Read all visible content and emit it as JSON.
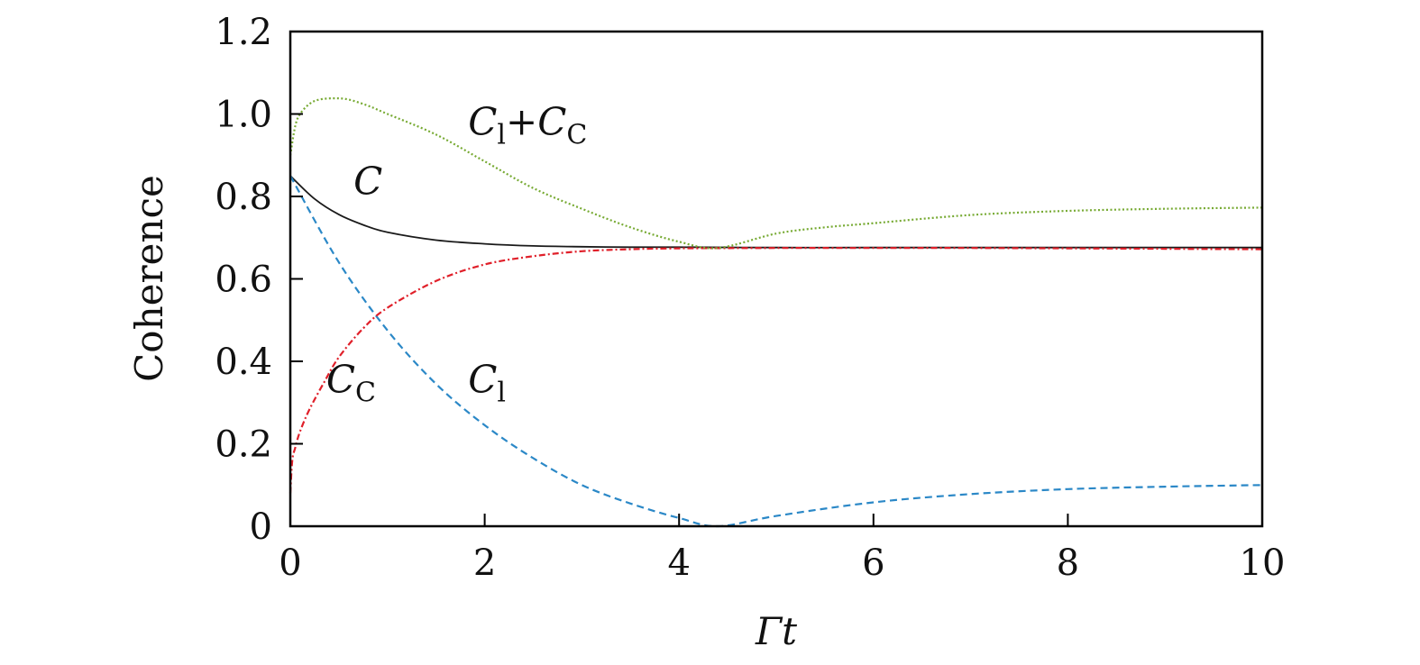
{
  "chart_data": {
    "type": "line",
    "xlabel_main": "Γt",
    "ylabel": "Coherence",
    "xlim": [
      0,
      10
    ],
    "ylim": [
      0,
      1.2
    ],
    "xticks": [
      0,
      2,
      4,
      6,
      8,
      10
    ],
    "xtick_labels": [
      "0",
      "2",
      "4",
      "6",
      "8",
      "10"
    ],
    "yticks": [
      0,
      0.2,
      0.4,
      0.6,
      0.8,
      1.0,
      1.2
    ],
    "ytick_labels": [
      "0",
      "0.2",
      "0.4",
      "0.6",
      "0.8",
      "1.0",
      "1.2"
    ],
    "grid": false,
    "series": [
      {
        "key": "C",
        "color": "#1a1a1a",
        "style": "solid",
        "x": [
          0,
          0.25,
          0.5,
          0.75,
          1,
          1.5,
          2,
          2.5,
          3,
          3.5,
          4,
          5,
          6,
          7,
          8,
          9,
          10
        ],
        "y": [
          0.85,
          0.794,
          0.756,
          0.731,
          0.713,
          0.694,
          0.685,
          0.68,
          0.678,
          0.677,
          0.677,
          0.676,
          0.676,
          0.676,
          0.676,
          0.676,
          0.676
        ]
      },
      {
        "key": "C_l",
        "color": "#2b88c7",
        "style": "dashed",
        "x": [
          0,
          0.5,
          1,
          1.5,
          2,
          2.5,
          3,
          3.5,
          4,
          4.4,
          5,
          6,
          7,
          8,
          9,
          10
        ],
        "y": [
          0.85,
          0.64,
          0.475,
          0.345,
          0.245,
          0.165,
          0.1,
          0.055,
          0.02,
          0.0,
          0.025,
          0.058,
          0.078,
          0.09,
          0.096,
          0.1
        ]
      },
      {
        "key": "C_C",
        "color": "#e0202a",
        "style": "dashdot",
        "x": [
          0,
          0.02,
          0.05,
          0.1,
          0.2,
          0.35,
          0.5,
          0.75,
          1,
          1.5,
          2,
          2.5,
          3,
          3.5,
          4,
          5,
          6,
          7,
          8,
          9,
          10
        ],
        "y": [
          0.08,
          0.16,
          0.19,
          0.23,
          0.285,
          0.35,
          0.41,
          0.48,
          0.53,
          0.595,
          0.635,
          0.655,
          0.667,
          0.672,
          0.674,
          0.675,
          0.675,
          0.675,
          0.674,
          0.673,
          0.672
        ]
      },
      {
        "key": "C_l+C_C",
        "color": "#77aa33",
        "style": "dotted",
        "x": [
          0,
          0.05,
          0.1,
          0.2,
          0.3,
          0.45,
          0.6,
          0.8,
          1,
          1.5,
          2,
          2.5,
          3,
          3.5,
          4,
          4.4,
          5,
          5.5,
          6,
          7,
          8,
          9,
          10
        ],
        "y": [
          0.9,
          0.97,
          1.0,
          1.025,
          1.035,
          1.038,
          1.035,
          1.02,
          1.0,
          0.95,
          0.885,
          0.82,
          0.77,
          0.725,
          0.69,
          0.675,
          0.71,
          0.725,
          0.735,
          0.755,
          0.765,
          0.77,
          0.773
        ]
      }
    ],
    "annotations": [
      {
        "key": "C",
        "main": "C",
        "sub": "",
        "x": 0.65,
        "y": 0.805
      },
      {
        "key": "C_l+C_C",
        "main": "C",
        "sub": "l",
        "main2": "+C",
        "sub2": "C",
        "x": 1.83,
        "y": 0.95
      },
      {
        "key": "C_C",
        "main": "C",
        "sub": "C",
        "x": 0.37,
        "y": 0.325
      },
      {
        "key": "C_l",
        "main": "C",
        "sub": "l",
        "x": 1.83,
        "y": 0.325
      }
    ]
  }
}
